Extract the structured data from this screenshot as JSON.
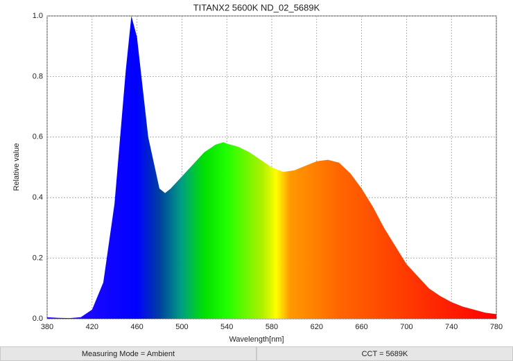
{
  "chart_data": {
    "type": "area",
    "title": "TITANX2 5600K ND_02_5689K",
    "x_label": "Wavelength[nm]",
    "y_label": "Relative value",
    "x": [
      380,
      390,
      400,
      410,
      420,
      430,
      440,
      450,
      455,
      460,
      470,
      480,
      485,
      490,
      500,
      510,
      520,
      530,
      537,
      540,
      550,
      560,
      570,
      580,
      590,
      600,
      610,
      620,
      630,
      640,
      650,
      660,
      670,
      680,
      690,
      700,
      710,
      720,
      730,
      740,
      750,
      760,
      770,
      780
    ],
    "values": [
      0.005,
      0.003,
      0.002,
      0.005,
      0.03,
      0.12,
      0.38,
      0.82,
      1.0,
      0.93,
      0.6,
      0.43,
      0.415,
      0.43,
      0.47,
      0.51,
      0.55,
      0.575,
      0.583,
      0.578,
      0.568,
      0.55,
      0.525,
      0.5,
      0.485,
      0.49,
      0.505,
      0.52,
      0.525,
      0.515,
      0.48,
      0.43,
      0.37,
      0.3,
      0.24,
      0.18,
      0.14,
      0.1,
      0.075,
      0.055,
      0.04,
      0.03,
      0.02,
      0.015
    ],
    "xlim": [
      380,
      780
    ],
    "xticks": [
      380,
      420,
      460,
      500,
      540,
      580,
      620,
      660,
      700,
      740,
      780
    ],
    "ylim": [
      0,
      1
    ],
    "yticks": [
      {
        "value": 0,
        "label": "0.0"
      },
      0.2,
      0.4,
      0.6,
      0.8,
      {
        "value": 1,
        "label": "1.0"
      }
    ],
    "grid": true
  },
  "footer": {
    "measuring_mode": "Measuring Mode = Ambient",
    "cct": "CCT = 5689K"
  }
}
